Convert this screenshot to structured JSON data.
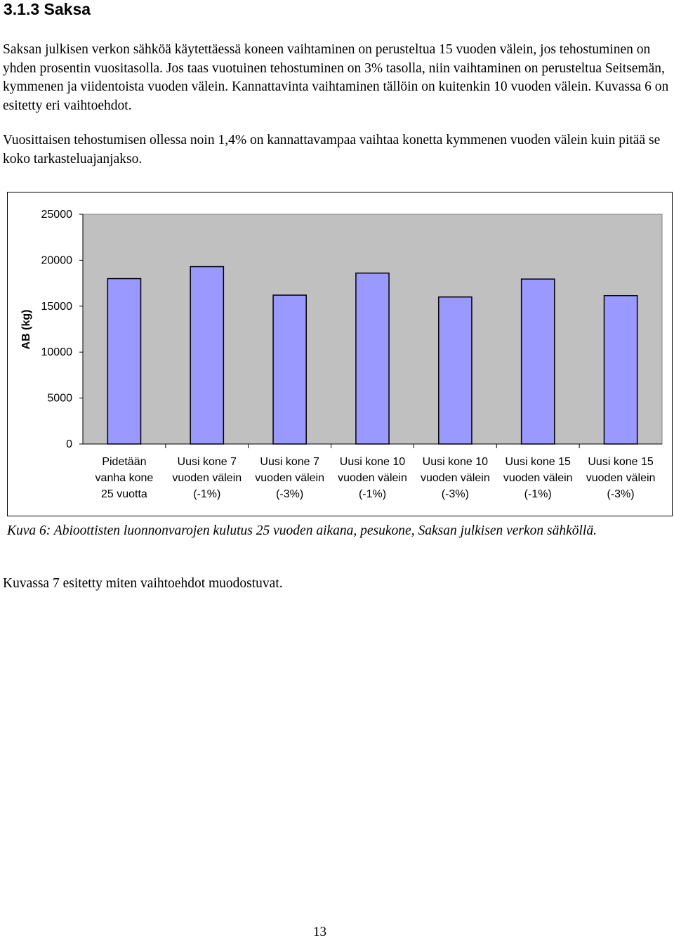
{
  "heading": "3.1.3 Saksa",
  "paragraphs": [
    "Saksan julkisen verkon sähköä käytettäessä koneen vaihtaminen on perusteltua 15 vuoden välein, jos tehostuminen on yhden prosentin vuositasolla. Jos taas vuotuinen tehostuminen on 3% tasolla, niin vaihtaminen on perusteltua Seitsemän, kymmenen ja viidentoista vuoden välein. Kannattavinta vaihtaminen tällöin on kuitenkin 10 vuoden välein. Kuvassa 6 on esitetty eri vaihtoehdot.",
    "Vuosittaisen tehostumisen ollessa noin 1,4% on kannattavampaa vaihtaa konetta kymmenen vuoden välein kuin pitää se koko tarkasteluajanjakso."
  ],
  "caption": "Kuva 6: Abioottisten luonnonvarojen kulutus 25 vuoden aikana, pesukone, Saksan julkisen verkon sähköllä.",
  "after_text": "Kuvassa 7 esitetty miten vaihtoehdot muodostuvat.",
  "page_number": "13",
  "chart_data": {
    "type": "bar",
    "ylabel": "AB (kg)",
    "xlabel": "",
    "title": "",
    "ylim": [
      0,
      25000
    ],
    "yticks": [
      "0",
      "5000",
      "10000",
      "15000",
      "20000",
      "25000"
    ],
    "grid": false,
    "categories": [
      [
        "Pidetään",
        "vanha kone",
        "25 vuotta"
      ],
      [
        "Uusi kone 7",
        "vuoden välein",
        "(-1%)"
      ],
      [
        "Uusi kone 7",
        "vuoden välein",
        "(-3%)"
      ],
      [
        "Uusi kone 10",
        "vuoden välein",
        "(-1%)"
      ],
      [
        "Uusi kone 10",
        "vuoden välein",
        "(-3%)"
      ],
      [
        "Uusi kone 15",
        "vuoden välein",
        "(-1%)"
      ],
      [
        "Uusi kone 15",
        "vuoden välein",
        "(-3%)"
      ]
    ],
    "values": [
      18000,
      19300,
      16200,
      18600,
      16000,
      17950,
      16150
    ],
    "colors": {
      "bar_fill": "#9999ff",
      "bar_stroke": "#000000",
      "plot_background": "#c0c0c0",
      "frame": "#000000"
    }
  }
}
